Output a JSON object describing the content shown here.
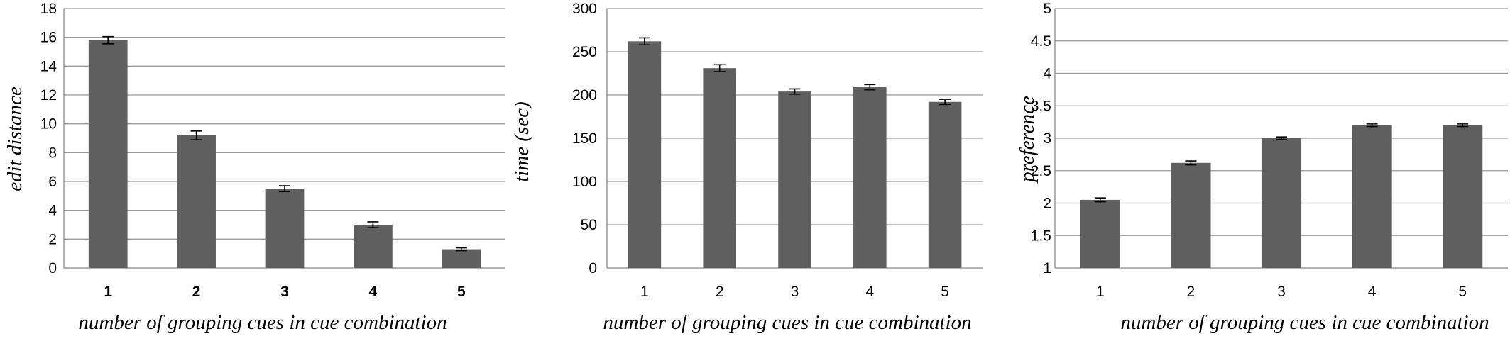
{
  "chart_data": [
    {
      "type": "bar",
      "title": "",
      "xlabel": "number of grouping cues in cue combination",
      "ylabel": "edit distance",
      "categories": [
        "1",
        "2",
        "3",
        "4",
        "5"
      ],
      "values": [
        15.8,
        9.2,
        5.5,
        3.0,
        1.3
      ],
      "errors": [
        0.25,
        0.3,
        0.2,
        0.2,
        0.1
      ],
      "ylim": [
        0,
        18
      ],
      "yticks": [
        "0",
        "2",
        "4",
        "6",
        "8",
        "10",
        "12",
        "14",
        "16",
        "18"
      ],
      "grid": true,
      "bar_color": "#5f5f5f"
    },
    {
      "type": "bar",
      "title": "",
      "xlabel": "number of grouping cues in cue combination",
      "ylabel": "time (sec)",
      "categories": [
        "1",
        "2",
        "3",
        "4",
        "5"
      ],
      "values": [
        262,
        231,
        204,
        209,
        192
      ],
      "errors": [
        4,
        4,
        3,
        3,
        3
      ],
      "ylim": [
        0,
        300
      ],
      "yticks": [
        "0",
        "50",
        "100",
        "150",
        "200",
        "250",
        "300"
      ],
      "grid": true,
      "bar_color": "#5f5f5f"
    },
    {
      "type": "bar",
      "title": "",
      "xlabel": "number of grouping cues in cue combination",
      "ylabel": "preference",
      "categories": [
        "1",
        "2",
        "3",
        "4",
        "5"
      ],
      "values": [
        2.05,
        2.62,
        3.0,
        3.2,
        3.2
      ],
      "errors": [
        0.03,
        0.03,
        0.02,
        0.02,
        0.02
      ],
      "ylim": [
        1,
        5
      ],
      "yticks": [
        "1",
        "1.5",
        "2",
        "2.5",
        "3",
        "3.5",
        "4",
        "4.5",
        "5"
      ],
      "grid": true,
      "bar_color": "#5f5f5f"
    }
  ]
}
